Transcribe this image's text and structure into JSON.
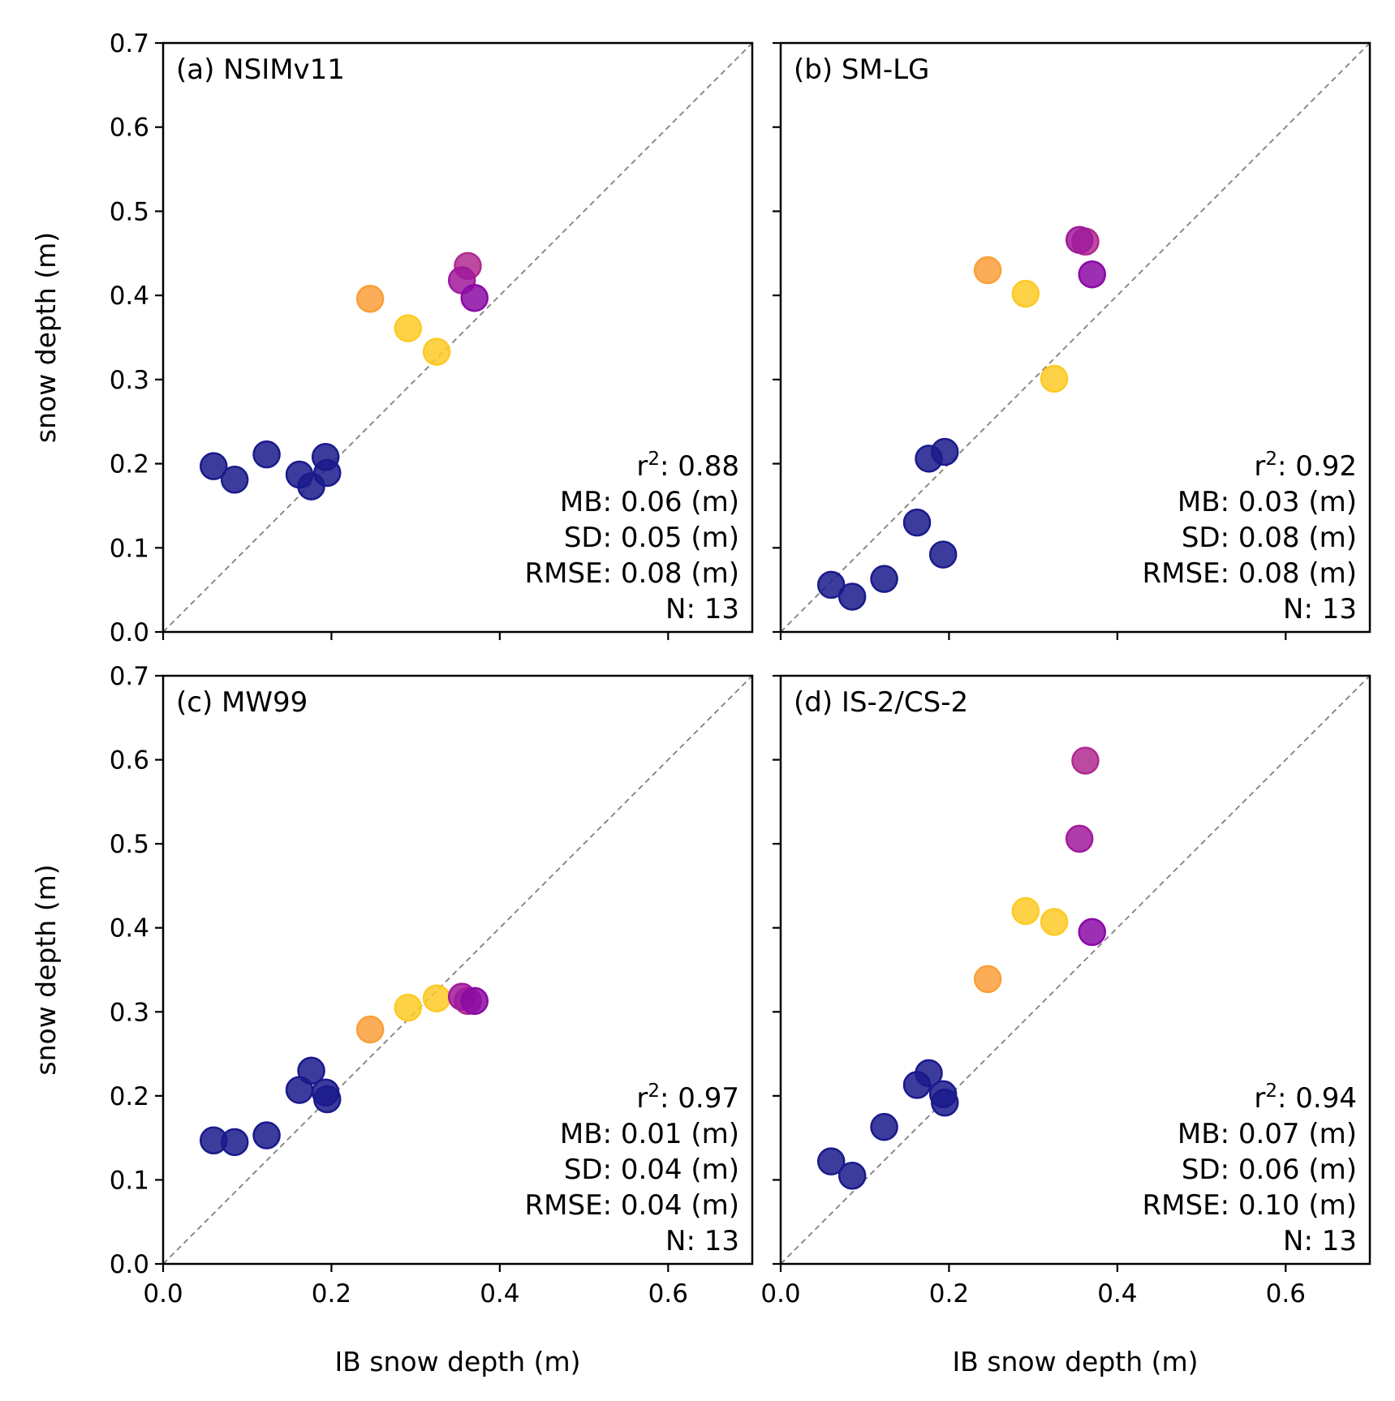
{
  "chart_data": [
    {
      "type": "scatter",
      "panel_label": "(a) NSIMv11",
      "xlabel": "",
      "ylabel": "snow depth (m)",
      "xlim": [
        0,
        0.7
      ],
      "ylim": [
        0,
        0.7
      ],
      "x_ticks": [
        "0.0",
        "0.2",
        "0.4",
        "0.6"
      ],
      "y_ticks": [
        "0.0",
        "0.1",
        "0.2",
        "0.3",
        "0.4",
        "0.5",
        "0.6",
        "0.7"
      ],
      "one_to_one_line": true,
      "points": [
        {
          "x": 0.06,
          "y": 0.197,
          "color": "#1a1a8c"
        },
        {
          "x": 0.085,
          "y": 0.181,
          "color": "#1a1a8c"
        },
        {
          "x": 0.123,
          "y": 0.211,
          "color": "#1a1a8c"
        },
        {
          "x": 0.162,
          "y": 0.187,
          "color": "#1a1a8c"
        },
        {
          "x": 0.176,
          "y": 0.173,
          "color": "#1a1a8c"
        },
        {
          "x": 0.193,
          "y": 0.208,
          "color": "#1a1a8c"
        },
        {
          "x": 0.195,
          "y": 0.189,
          "color": "#1a1a8c"
        },
        {
          "x": 0.246,
          "y": 0.396,
          "color": "#fb9f3a"
        },
        {
          "x": 0.291,
          "y": 0.361,
          "color": "#fdca26"
        },
        {
          "x": 0.325,
          "y": 0.333,
          "color": "#fdca26"
        },
        {
          "x": 0.362,
          "y": 0.435,
          "color": "#b12a90"
        },
        {
          "x": 0.355,
          "y": 0.418,
          "color": "#a01a9c"
        },
        {
          "x": 0.37,
          "y": 0.397,
          "color": "#8b0aa5"
        }
      ],
      "stats": {
        "r2_prefix": "r",
        "r2_sup": "2",
        "r2_value": ": 0.88",
        "mb": "MB: 0.06 (m)",
        "sd": "SD: 0.05 (m)",
        "rmse": "RMSE: 0.08 (m)",
        "n": "N: 13"
      }
    },
    {
      "type": "scatter",
      "panel_label": "(b) SM-LG",
      "xlabel": "",
      "ylabel": "",
      "xlim": [
        0,
        0.7
      ],
      "ylim": [
        0,
        0.7
      ],
      "x_ticks": [
        "0.0",
        "0.2",
        "0.4",
        "0.6"
      ],
      "y_ticks": [],
      "one_to_one_line": true,
      "points": [
        {
          "x": 0.06,
          "y": 0.056,
          "color": "#1a1a8c"
        },
        {
          "x": 0.085,
          "y": 0.042,
          "color": "#1a1a8c"
        },
        {
          "x": 0.123,
          "y": 0.063,
          "color": "#1a1a8c"
        },
        {
          "x": 0.162,
          "y": 0.13,
          "color": "#1a1a8c"
        },
        {
          "x": 0.176,
          "y": 0.206,
          "color": "#1a1a8c"
        },
        {
          "x": 0.193,
          "y": 0.092,
          "color": "#1a1a8c"
        },
        {
          "x": 0.195,
          "y": 0.214,
          "color": "#1a1a8c"
        },
        {
          "x": 0.246,
          "y": 0.43,
          "color": "#fb9f3a"
        },
        {
          "x": 0.291,
          "y": 0.402,
          "color": "#fdca26"
        },
        {
          "x": 0.325,
          "y": 0.301,
          "color": "#fdca26"
        },
        {
          "x": 0.362,
          "y": 0.464,
          "color": "#b12a90"
        },
        {
          "x": 0.355,
          "y": 0.466,
          "color": "#a01a9c"
        },
        {
          "x": 0.37,
          "y": 0.425,
          "color": "#8b0aa5"
        }
      ],
      "stats": {
        "r2_prefix": "r",
        "r2_sup": "2",
        "r2_value": ": 0.92",
        "mb": "MB: 0.03 (m)",
        "sd": "SD: 0.08 (m)",
        "rmse": "RMSE: 0.08 (m)",
        "n": "N: 13"
      }
    },
    {
      "type": "scatter",
      "panel_label": "(c) MW99",
      "xlabel": "IB snow depth (m)",
      "ylabel": "snow depth (m)",
      "xlim": [
        0,
        0.7
      ],
      "ylim": [
        0,
        0.7
      ],
      "x_ticks": [
        "0.0",
        "0.2",
        "0.4",
        "0.6"
      ],
      "y_ticks": [
        "0.0",
        "0.1",
        "0.2",
        "0.3",
        "0.4",
        "0.5",
        "0.6",
        "0.7"
      ],
      "one_to_one_line": true,
      "points": [
        {
          "x": 0.06,
          "y": 0.147,
          "color": "#1a1a8c"
        },
        {
          "x": 0.085,
          "y": 0.145,
          "color": "#1a1a8c"
        },
        {
          "x": 0.123,
          "y": 0.153,
          "color": "#1a1a8c"
        },
        {
          "x": 0.162,
          "y": 0.207,
          "color": "#1a1a8c"
        },
        {
          "x": 0.176,
          "y": 0.23,
          "color": "#1a1a8c"
        },
        {
          "x": 0.193,
          "y": 0.204,
          "color": "#1a1a8c"
        },
        {
          "x": 0.195,
          "y": 0.196,
          "color": "#1a1a8c"
        },
        {
          "x": 0.246,
          "y": 0.279,
          "color": "#fb9f3a"
        },
        {
          "x": 0.291,
          "y": 0.305,
          "color": "#fdca26"
        },
        {
          "x": 0.325,
          "y": 0.316,
          "color": "#fdca26"
        },
        {
          "x": 0.362,
          "y": 0.313,
          "color": "#b12a90"
        },
        {
          "x": 0.355,
          "y": 0.318,
          "color": "#a01a9c"
        },
        {
          "x": 0.37,
          "y": 0.313,
          "color": "#8b0aa5"
        }
      ],
      "stats": {
        "r2_prefix": "r",
        "r2_sup": "2",
        "r2_value": ": 0.97",
        "mb": "MB: 0.01 (m)",
        "sd": "SD: 0.04 (m)",
        "rmse": "RMSE: 0.04 (m)",
        "n": "N: 13"
      }
    },
    {
      "type": "scatter",
      "panel_label": "(d) IS-2/CS-2",
      "xlabel": "IB snow depth (m)",
      "ylabel": "",
      "xlim": [
        0,
        0.7
      ],
      "ylim": [
        0,
        0.7
      ],
      "x_ticks": [
        "0.0",
        "0.2",
        "0.4",
        "0.6"
      ],
      "y_ticks": [],
      "one_to_one_line": true,
      "points": [
        {
          "x": 0.06,
          "y": 0.122,
          "color": "#1a1a8c"
        },
        {
          "x": 0.085,
          "y": 0.105,
          "color": "#1a1a8c"
        },
        {
          "x": 0.123,
          "y": 0.163,
          "color": "#1a1a8c"
        },
        {
          "x": 0.162,
          "y": 0.213,
          "color": "#1a1a8c"
        },
        {
          "x": 0.176,
          "y": 0.227,
          "color": "#1a1a8c"
        },
        {
          "x": 0.193,
          "y": 0.202,
          "color": "#1a1a8c"
        },
        {
          "x": 0.195,
          "y": 0.192,
          "color": "#1a1a8c"
        },
        {
          "x": 0.246,
          "y": 0.339,
          "color": "#fb9f3a"
        },
        {
          "x": 0.291,
          "y": 0.42,
          "color": "#fdca26"
        },
        {
          "x": 0.325,
          "y": 0.407,
          "color": "#fdca26"
        },
        {
          "x": 0.362,
          "y": 0.599,
          "color": "#b12a90"
        },
        {
          "x": 0.355,
          "y": 0.506,
          "color": "#a01a9c"
        },
        {
          "x": 0.37,
          "y": 0.395,
          "color": "#8b0aa5"
        }
      ],
      "stats": {
        "r2_prefix": "r",
        "r2_sup": "2",
        "r2_value": ": 0.94",
        "mb": "MB: 0.07 (m)",
        "sd": "SD: 0.06 (m)",
        "rmse": "RMSE: 0.10 (m)",
        "n": "N: 13"
      }
    }
  ]
}
